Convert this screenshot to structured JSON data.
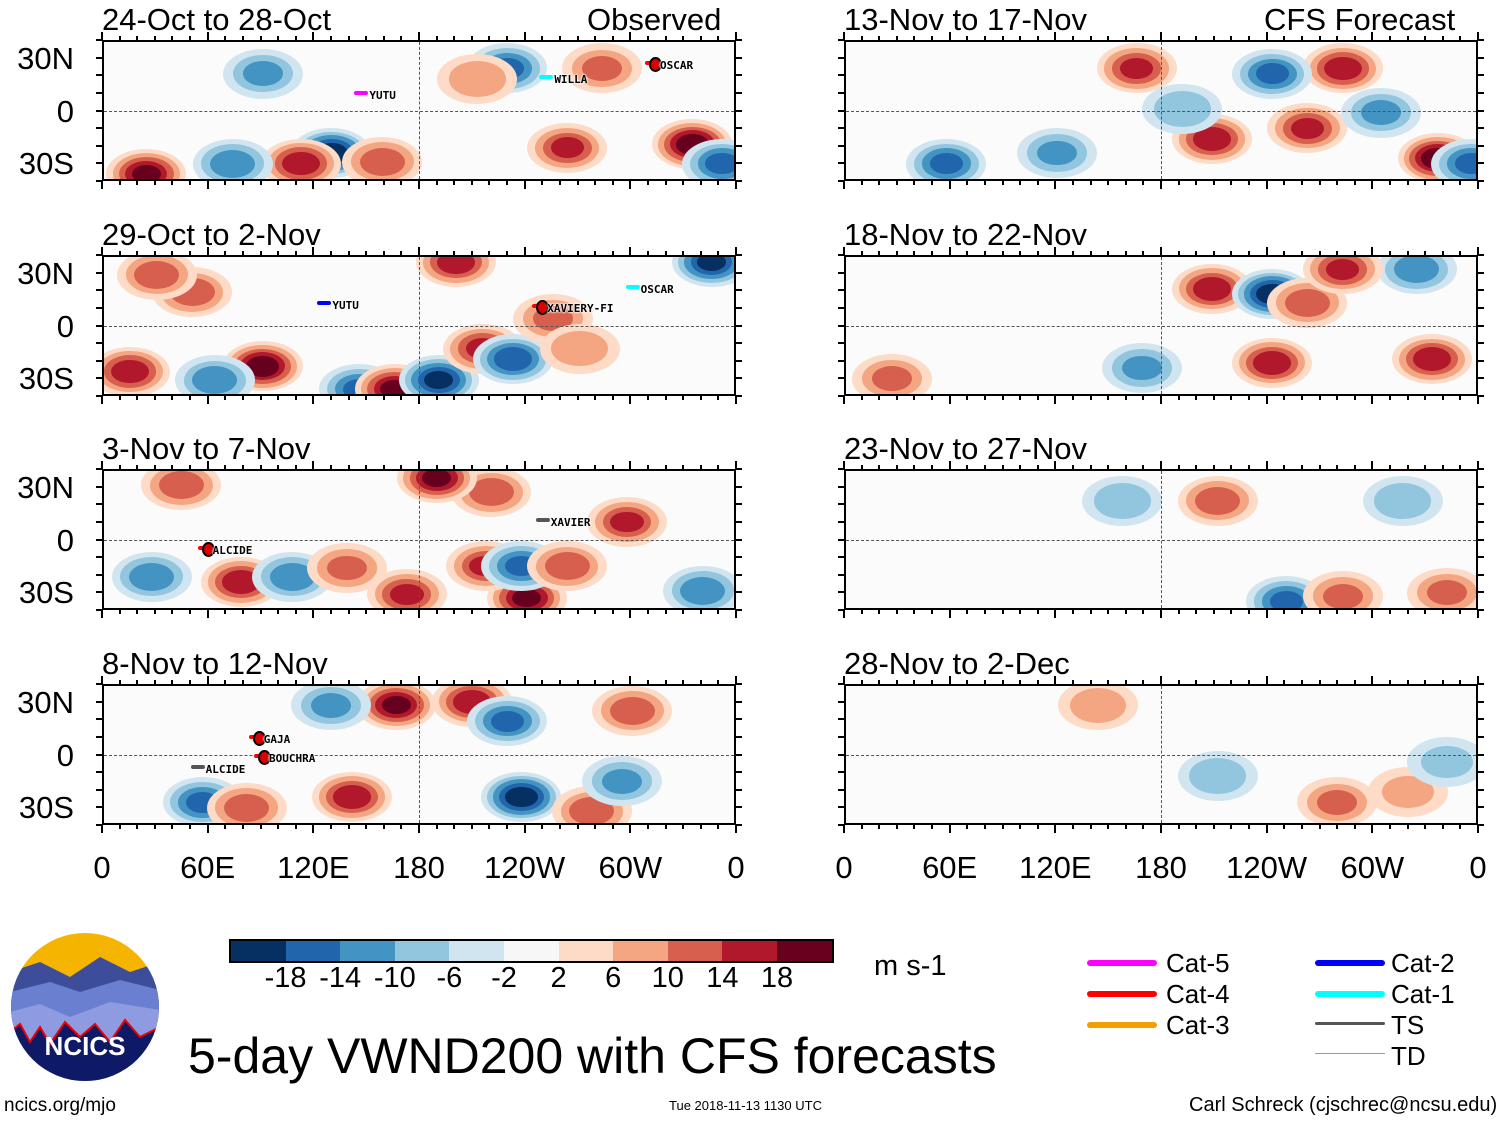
{
  "header": {
    "left_label": "Observed",
    "right_label": "CFS Forecast"
  },
  "axes": {
    "lat_labels": [
      "30N",
      "0",
      "30S"
    ],
    "lon_labels": [
      "0",
      "60E",
      "120E",
      "180",
      "120W",
      "60W",
      "0"
    ]
  },
  "chart_data": {
    "type": "heatmap",
    "variable": "200-hPa meridional wind anomaly",
    "units": "m s-1",
    "lon_range": [
      0,
      360
    ],
    "lat_range": [
      -40,
      40
    ],
    "panels": [
      {
        "title": "24-Oct to 28-Oct",
        "side": "left",
        "row": 0,
        "anomalies": [
          [
            129,
            -23,
            -20
          ],
          [
            112,
            -29,
            16
          ],
          [
            24,
            -35,
            18
          ],
          [
            158,
            -28,
            12
          ],
          [
            334,
            -18,
            20
          ],
          [
            229,
            25,
            -14
          ],
          [
            263,
            -20,
            14
          ],
          [
            90,
            22,
            -10
          ],
          [
            351,
            -29,
            -14
          ],
          [
            73,
            -29,
            -12
          ],
          [
            283,
            25,
            10
          ],
          [
            212,
            19,
            8
          ]
        ],
        "storms": [
          {
            "name": "OSCAR",
            "lon": 314,
            "lat": 27,
            "cat": "Cat-4"
          },
          {
            "name": "YUTU",
            "lon": 149,
            "lat": 10,
            "cat": "Cat-5"
          },
          {
            "name": "WILLA",
            "lon": 254,
            "lat": 19,
            "cat": "Cat-1"
          }
        ]
      },
      {
        "title": "29-Oct to 2-Nov",
        "side": "left",
        "row": 1,
        "anomalies": [
          [
            90,
            -22,
            20
          ],
          [
            15,
            -25,
            16
          ],
          [
            63,
            -30,
            -12
          ],
          [
            145,
            -35,
            -14
          ],
          [
            165,
            -35,
            18
          ],
          [
            190,
            -30,
            -18
          ],
          [
            215,
            -12,
            14
          ],
          [
            232,
            -18,
            -16
          ],
          [
            200,
            37,
            16
          ],
          [
            255,
            5,
            10
          ],
          [
            345,
            37,
            -18
          ],
          [
            50,
            20,
            12
          ],
          [
            270,
            -12,
            8
          ],
          [
            30,
            30,
            12
          ]
        ],
        "storms": [
          {
            "name": "YUTU",
            "lon": 128,
            "lat": 13,
            "cat": "Cat-2"
          },
          {
            "name": "XAVIERY-FI",
            "lon": 250,
            "lat": 11,
            "cat": "Cat-4"
          },
          {
            "name": "OSCAR",
            "lon": 303,
            "lat": 22,
            "cat": "Cat-1"
          }
        ]
      },
      {
        "title": "3-Nov to 7-Nov",
        "side": "left",
        "row": 2,
        "anomalies": [
          [
            78,
            -23,
            16
          ],
          [
            107,
            -20,
            -12
          ],
          [
            138,
            -15,
            10
          ],
          [
            172,
            -30,
            14
          ],
          [
            240,
            -32,
            18
          ],
          [
            217,
            -14,
            14
          ],
          [
            237,
            -14,
            -14
          ],
          [
            263,
            -14,
            12
          ],
          [
            220,
            28,
            12
          ],
          [
            189,
            36,
            18
          ],
          [
            297,
            11,
            14
          ],
          [
            44,
            32,
            12
          ],
          [
            27,
            -20,
            -12
          ],
          [
            340,
            -28,
            -12
          ]
        ],
        "storms": [
          {
            "name": "XAVIER",
            "lon": 252,
            "lat": 11,
            "cat": "TS"
          },
          {
            "name": "ALCIDE",
            "lon": 60,
            "lat": -5,
            "cat": "Cat-4"
          }
        ]
      },
      {
        "title": "8-Nov to 12-Nov",
        "side": "left",
        "row": 3,
        "anomalies": [
          [
            166,
            29,
            18
          ],
          [
            209,
            31,
            16
          ],
          [
            229,
            20,
            -14
          ],
          [
            237,
            -23,
            -20
          ],
          [
            141,
            -23,
            16
          ],
          [
            56,
            -26,
            -14
          ],
          [
            81,
            -29,
            12
          ],
          [
            277,
            -31,
            12
          ],
          [
            294,
            -14,
            -10
          ],
          [
            300,
            26,
            12
          ],
          [
            129,
            29,
            -10
          ]
        ],
        "storms": [
          {
            "name": "GAJA",
            "lon": 89,
            "lat": 10,
            "cat": "Cat-4"
          },
          {
            "name": "BOUCHRA",
            "lon": 92,
            "lat": -1,
            "cat": "Cat-4"
          },
          {
            "name": "ALCIDE",
            "lon": 56,
            "lat": -7,
            "cat": "TS"
          }
        ]
      },
      {
        "title": "13-Nov to 17-Nov",
        "side": "right",
        "row": 0,
        "anomalies": [
          [
            165,
            25,
            14
          ],
          [
            208,
            -15,
            16
          ],
          [
            262,
            -9,
            14
          ],
          [
            336,
            -26,
            20
          ],
          [
            282,
            25,
            16
          ],
          [
            242,
            22,
            -14
          ],
          [
            57,
            -29,
            -14
          ],
          [
            120,
            -23,
            -10
          ],
          [
            304,
            0,
            -10
          ],
          [
            191,
            2,
            -8
          ],
          [
            355,
            -29,
            -14
          ]
        ],
        "storms": []
      },
      {
        "title": "18-Nov to 22-Nov",
        "side": "right",
        "row": 1,
        "anomalies": [
          [
            208,
            22,
            16
          ],
          [
            242,
            19,
            -20
          ],
          [
            242,
            -20,
            16
          ],
          [
            262,
            14,
            12
          ],
          [
            333,
            -18,
            16
          ],
          [
            324,
            33,
            -12
          ],
          [
            282,
            33,
            14
          ],
          [
            168,
            -23,
            -10
          ],
          [
            26,
            -29,
            10
          ]
        ],
        "storms": []
      },
      {
        "title": "23-Nov to 27-Nov",
        "side": "right",
        "row": 2,
        "anomalies": [
          [
            211,
            23,
            12
          ],
          [
            250,
            -34,
            -14
          ],
          [
            282,
            -31,
            10
          ],
          [
            341,
            -29,
            10
          ],
          [
            157,
            23,
            -8
          ],
          [
            316,
            23,
            -8
          ]
        ],
        "storms": []
      },
      {
        "title": "28-Nov to 2-Dec",
        "side": "right",
        "row": 3,
        "anomalies": [
          [
            143,
            29,
            8
          ],
          [
            279,
            -26,
            10
          ],
          [
            211,
            -11,
            -8
          ],
          [
            319,
            -20,
            6
          ],
          [
            341,
            -3,
            -6
          ]
        ],
        "storms": []
      }
    ]
  },
  "colorbar": {
    "labels": [
      "-18",
      "-14",
      "-10",
      "-6",
      "-2",
      "2",
      "6",
      "10",
      "14",
      "18"
    ],
    "units": "m s-1",
    "colors": [
      "#053061",
      "#2166ac",
      "#4393c3",
      "#92c5de",
      "#d1e5f0",
      "#f7f7f7",
      "#fddbc7",
      "#f4a582",
      "#d6604d",
      "#b2182b",
      "#67001f"
    ]
  },
  "legend": [
    {
      "label": "Cat-5",
      "color": "#ff00ff"
    },
    {
      "label": "Cat-4",
      "color": "#ff0000"
    },
    {
      "label": "Cat-3",
      "color": "#f0a000"
    },
    {
      "label": "Cat-2",
      "color": "#0000ff"
    },
    {
      "label": "Cat-1",
      "color": "#00ffff"
    },
    {
      "label": "TS",
      "color": "#555555"
    },
    {
      "label": "TD",
      "color": "#999999"
    }
  ],
  "footer": {
    "title": "5-day VWND200 with CFS forecasts",
    "url": "ncics.org/mjo",
    "timestamp": "Tue 2018-11-13 1130 UTC",
    "author": "Carl Schreck (cjschrec@ncsu.edu)",
    "logo_text": "NCICS"
  }
}
